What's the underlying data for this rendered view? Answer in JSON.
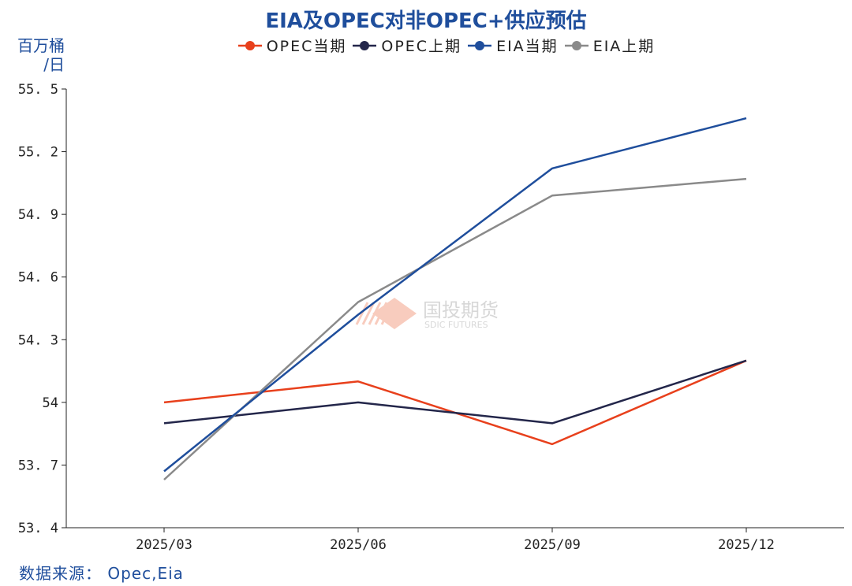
{
  "title": "EIA及OPEC对非OPEC+供应预估",
  "unit_line1": "百万桶",
  "unit_line2": "/日",
  "source": "数据来源：  Opec,Eia",
  "watermark": {
    "name": "国投期货",
    "sub": "SDIC FUTURES"
  },
  "chart_data": {
    "type": "line",
    "title": "EIA及OPEC对非OPEC+供应预估",
    "ylabel": "百万桶/日",
    "categories": [
      "2025/03",
      "2025/06",
      "2025/09",
      "2025/12"
    ],
    "ylim": [
      53.4,
      55.5
    ],
    "yticks": [
      {
        "value": 53.4,
        "label": "53. 4"
      },
      {
        "value": 53.7,
        "label": "53. 7"
      },
      {
        "value": 54.0,
        "label": "54"
      },
      {
        "value": 54.3,
        "label": "54. 3"
      },
      {
        "value": 54.6,
        "label": "54. 6"
      },
      {
        "value": 54.9,
        "label": "54. 9"
      },
      {
        "value": 55.2,
        "label": "55. 2"
      },
      {
        "value": 55.5,
        "label": "55. 5"
      }
    ],
    "grid": false,
    "legend_position": "top-center",
    "series": [
      {
        "name": "OPEC当期",
        "color": "#e8401c",
        "values": [
          54.0,
          54.1,
          53.8,
          54.2
        ]
      },
      {
        "name": "OPEC上期",
        "color": "#23264a",
        "values": [
          53.9,
          54.0,
          53.9,
          54.2
        ]
      },
      {
        "name": "EIA当期",
        "color": "#1f4e9c",
        "values": [
          53.67,
          54.42,
          55.12,
          55.36
        ]
      },
      {
        "name": "EIA上期",
        "color": "#8a8a8a",
        "values": [
          53.63,
          54.48,
          54.99,
          55.07
        ]
      }
    ]
  }
}
